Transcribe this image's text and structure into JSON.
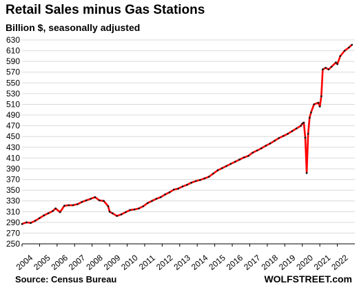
{
  "title": "Retail Sales minus Gas Stations",
  "subtitle": "Billion $, seasonally adjusted",
  "source": "Source: Census Bureau",
  "brand": "WOLFSTREET.com",
  "colors": {
    "line": "#ff0000",
    "points": "#1a1a1a",
    "grid": "#d9d9d9",
    "axis": "#000000"
  },
  "chart_data": {
    "type": "line",
    "title": "Retail Sales minus Gas Stations",
    "ylabel": "Billion $, seasonally adjusted",
    "ylim": [
      250,
      630
    ],
    "yticks": [
      250,
      270,
      290,
      310,
      330,
      350,
      370,
      390,
      410,
      430,
      450,
      470,
      490,
      510,
      530,
      550,
      570,
      590,
      610,
      630
    ],
    "xticks": [
      "2004",
      "2005",
      "2006",
      "2007",
      "2008",
      "2009",
      "2010",
      "2011",
      "2012",
      "2013",
      "2014",
      "2015",
      "2016",
      "2017",
      "2018",
      "2019",
      "2020",
      "2021",
      "2022"
    ],
    "grid": "horizontal",
    "series": [
      {
        "points": [
          [
            "2004-01",
            287
          ],
          [
            "2004-04",
            290
          ],
          [
            "2004-07",
            289
          ],
          [
            "2004-10",
            293
          ],
          [
            "2005-01",
            298
          ],
          [
            "2005-04",
            303
          ],
          [
            "2005-07",
            307
          ],
          [
            "2005-10",
            311
          ],
          [
            "2005-12",
            316
          ],
          [
            "2006-03",
            309
          ],
          [
            "2006-06",
            321
          ],
          [
            "2006-09",
            322
          ],
          [
            "2006-12",
            322
          ],
          [
            "2007-03",
            324
          ],
          [
            "2007-06",
            328
          ],
          [
            "2007-09",
            331
          ],
          [
            "2007-12",
            334
          ],
          [
            "2008-03",
            337
          ],
          [
            "2008-06",
            331
          ],
          [
            "2008-09",
            330
          ],
          [
            "2008-12",
            320
          ],
          [
            "2009-01",
            310
          ],
          [
            "2009-03",
            307
          ],
          [
            "2009-06",
            302
          ],
          [
            "2009-09",
            305
          ],
          [
            "2009-12",
            309
          ],
          [
            "2010-03",
            313
          ],
          [
            "2010-06",
            314
          ],
          [
            "2010-09",
            316
          ],
          [
            "2010-12",
            320
          ],
          [
            "2011-03",
            326
          ],
          [
            "2011-06",
            330
          ],
          [
            "2011-09",
            334
          ],
          [
            "2011-12",
            337
          ],
          [
            "2012-03",
            342
          ],
          [
            "2012-06",
            346
          ],
          [
            "2012-09",
            351
          ],
          [
            "2012-12",
            353
          ],
          [
            "2013-03",
            357
          ],
          [
            "2013-06",
            360
          ],
          [
            "2013-09",
            364
          ],
          [
            "2013-12",
            367
          ],
          [
            "2014-03",
            369
          ],
          [
            "2014-06",
            372
          ],
          [
            "2014-09",
            375
          ],
          [
            "2014-12",
            381
          ],
          [
            "2015-03",
            387
          ],
          [
            "2015-06",
            391
          ],
          [
            "2015-09",
            395
          ],
          [
            "2015-12",
            399
          ],
          [
            "2016-03",
            403
          ],
          [
            "2016-06",
            407
          ],
          [
            "2016-09",
            411
          ],
          [
            "2016-12",
            414
          ],
          [
            "2017-03",
            420
          ],
          [
            "2017-06",
            424
          ],
          [
            "2017-09",
            428
          ],
          [
            "2017-12",
            433
          ],
          [
            "2018-03",
            437
          ],
          [
            "2018-06",
            442
          ],
          [
            "2018-09",
            447
          ],
          [
            "2018-12",
            451
          ],
          [
            "2019-03",
            455
          ],
          [
            "2019-06",
            460
          ],
          [
            "2019-09",
            465
          ],
          [
            "2019-12",
            470
          ],
          [
            "2020-01",
            474
          ],
          [
            "2020-02",
            476
          ],
          [
            "2020-03",
            448
          ],
          [
            "2020-04",
            382
          ],
          [
            "2020-05",
            455
          ],
          [
            "2020-06",
            485
          ],
          [
            "2020-07",
            495
          ],
          [
            "2020-09",
            510
          ],
          [
            "2020-12",
            513
          ],
          [
            "2021-01",
            506
          ],
          [
            "2021-02",
            525
          ],
          [
            "2021-03",
            575
          ],
          [
            "2021-05",
            578
          ],
          [
            "2021-07",
            575
          ],
          [
            "2021-09",
            580
          ],
          [
            "2021-12",
            588
          ],
          [
            "2022-01",
            585
          ],
          [
            "2022-03",
            600
          ],
          [
            "2022-06",
            610
          ],
          [
            "2022-09",
            616
          ],
          [
            "2022-11",
            621
          ]
        ]
      }
    ]
  }
}
